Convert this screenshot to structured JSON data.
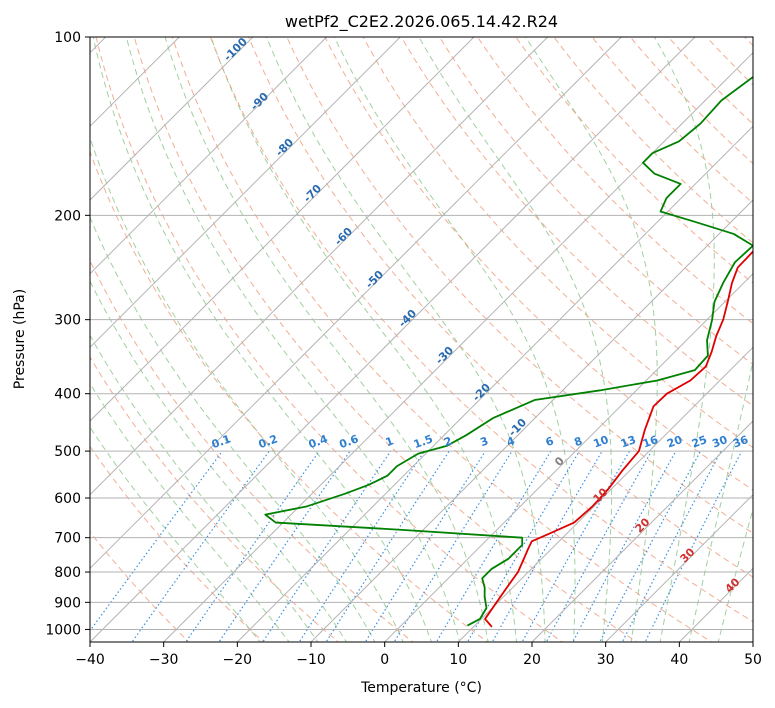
{
  "chart_data": {
    "type": "line",
    "title": "wetPf2_C2E2.2026.065.14.42.R24",
    "xlabel": "Temperature (°C)",
    "ylabel": "Pressure (hPa)",
    "xlim": [
      -40,
      50
    ],
    "ylim": [
      1050,
      100
    ],
    "y_scale": "log",
    "grid": true,
    "x_ticks": [
      "−40",
      "−30",
      "−20",
      "−10",
      "0",
      "10",
      "20",
      "30",
      "40",
      "50"
    ],
    "x_tick_values": [
      -40,
      -30,
      -20,
      -10,
      0,
      10,
      20,
      30,
      40,
      50
    ],
    "y_ticks": [
      "100",
      "200",
      "300",
      "400",
      "500",
      "600",
      "700",
      "800",
      "900",
      "1000"
    ],
    "y_tick_values": [
      100,
      200,
      300,
      400,
      500,
      600,
      700,
      800,
      900,
      1000
    ],
    "series": [
      {
        "color": "#e00000",
        "points": [
          [
            12.5,
            990
          ],
          [
            10.5,
            960
          ],
          [
            9.8,
            900
          ],
          [
            9.2,
            850
          ],
          [
            8.6,
            800
          ],
          [
            7.6,
            760
          ],
          [
            6.8,
            730
          ],
          [
            6.3,
            710
          ],
          [
            7.6,
            690
          ],
          [
            9.5,
            660
          ],
          [
            9.8,
            620
          ],
          [
            9.6,
            580
          ],
          [
            9.0,
            540
          ],
          [
            8.6,
            500
          ],
          [
            6.5,
            460
          ],
          [
            4.5,
            420
          ],
          [
            4.6,
            400
          ],
          [
            6.0,
            380
          ],
          [
            6.2,
            360
          ],
          [
            5.0,
            340
          ],
          [
            3.5,
            320
          ],
          [
            2.2,
            300
          ],
          [
            0.4,
            280
          ],
          [
            -1.6,
            260
          ],
          [
            -2.9,
            245
          ],
          [
            -3.0,
            230
          ],
          [
            -1.0,
            215
          ],
          [
            2.0,
            205
          ],
          [
            5.5,
            195
          ],
          [
            8.5,
            185
          ],
          [
            10.5,
            175
          ],
          [
            11.5,
            160
          ],
          [
            12.0,
            145
          ],
          [
            13.5,
            130
          ],
          [
            16.8,
            115
          ],
          [
            19.2,
            105
          ],
          [
            20.5,
            100
          ]
        ]
      },
      {
        "color": "#008000",
        "points": [
          [
            9.0,
            985
          ],
          [
            9.8,
            960
          ],
          [
            9.2,
            920
          ],
          [
            7.4,
            880
          ],
          [
            6.2,
            850
          ],
          [
            4.6,
            820
          ],
          [
            4.6,
            790
          ],
          [
            5.5,
            760
          ],
          [
            5.5,
            720
          ],
          [
            4.5,
            700
          ],
          [
            -12.0,
            680
          ],
          [
            -31.0,
            660
          ],
          [
            -33.5,
            640
          ],
          [
            -29.0,
            620
          ],
          [
            -25.5,
            590
          ],
          [
            -23.5,
            570
          ],
          [
            -22.2,
            550
          ],
          [
            -22.2,
            530
          ],
          [
            -21.0,
            505
          ],
          [
            -18.2,
            490
          ],
          [
            -17.0,
            470
          ],
          [
            -15.7,
            440
          ],
          [
            -12.5,
            410
          ],
          [
            -5.0,
            395
          ],
          [
            1.5,
            380
          ],
          [
            5.2,
            365
          ],
          [
            5.0,
            345
          ],
          [
            2.8,
            325
          ],
          [
            0.7,
            300
          ],
          [
            -1.4,
            280
          ],
          [
            -2.8,
            260
          ],
          [
            -4.0,
            240
          ],
          [
            -3.8,
            225
          ],
          [
            -8.0,
            215
          ],
          [
            -15.0,
            205
          ],
          [
            -21.0,
            197
          ],
          [
            -22.0,
            187
          ],
          [
            -22.0,
            177
          ],
          [
            -27.0,
            170
          ],
          [
            -30.0,
            163
          ],
          [
            -30.0,
            157
          ],
          [
            -28.0,
            150
          ],
          [
            -27.5,
            140
          ],
          [
            -27.8,
            128
          ],
          [
            -26.5,
            115
          ],
          [
            -24.5,
            108
          ],
          [
            -23.5,
            100
          ]
        ]
      }
    ],
    "dry_adiabat_labels": [
      "-100",
      "-90",
      "-80",
      "-70",
      "-60",
      "-50",
      "-40",
      "-30",
      "-20",
      "-10",
      "0",
      "10",
      "20",
      "30",
      "40"
    ],
    "mixing_ratio_labels": [
      "0.1",
      "0.2",
      "0.4",
      "0.6",
      "1",
      "1.5",
      "2",
      "3",
      "4",
      "6",
      "8",
      "10",
      "13",
      "16",
      "20",
      "25",
      "30",
      "36"
    ],
    "colors": {
      "temperature": "#e00000",
      "dewpoint": "#008000",
      "isotherm": "#b3b3b3",
      "isobar": "#b3b3b3",
      "dry_adiabat": "#f0a080",
      "moist_adiabat": "#90c890",
      "mixing_ratio": "#3a90e0",
      "label_blue": "#2f7fd0",
      "label_red": "#d03030",
      "label_gray": "#808080",
      "adiabat_label_dark": "#2a6bb0",
      "reference_curve": "#d9c2a6"
    }
  }
}
